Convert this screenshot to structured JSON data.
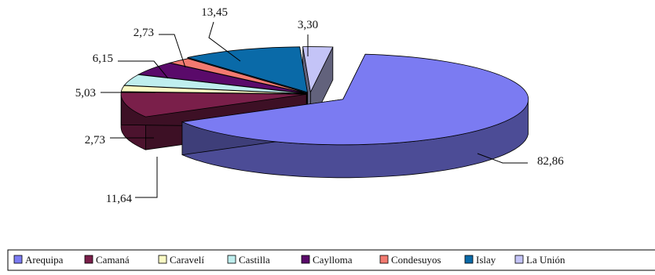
{
  "chart_data": {
    "type": "pie",
    "style": "3d-exploded",
    "categories": [
      "Arequipa",
      "Camaná",
      "Caravelí",
      "Castilla",
      "Caylloma",
      "Condesuyos",
      "Islay",
      "La Unión"
    ],
    "values": [
      82.86,
      11.64,
      2.73,
      5.03,
      6.15,
      2.73,
      13.45,
      3.3
    ],
    "data_labels": [
      "82,86",
      "11,64",
      "2,73",
      "5,03",
      "6,15",
      "2,73",
      "13,45",
      "3,30"
    ],
    "colors": [
      "#7b7bf2",
      "#7a1f4a",
      "#fafac4",
      "#bfeeee",
      "#5a0a6a",
      "#f27a70",
      "#0a6aa8",
      "#c4c4f7"
    ],
    "legend_position": "bottom",
    "legend_truncated_label": "La Unión"
  }
}
